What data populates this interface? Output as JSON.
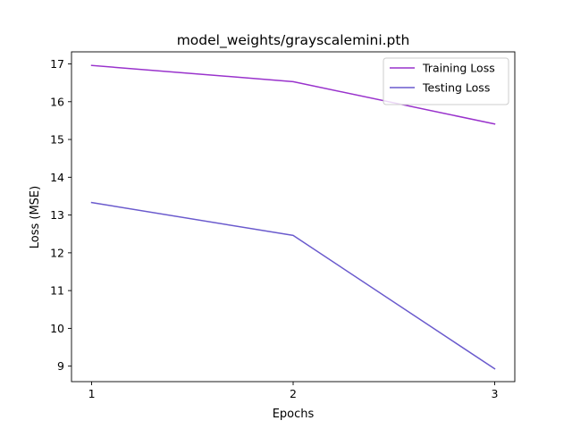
{
  "chart_data": {
    "type": "line",
    "title": "model_weights/grayscalemini.pth",
    "xlabel": "Epochs",
    "ylabel": "Loss (MSE)",
    "x": [
      1,
      2,
      3
    ],
    "x_ticks": [
      "1",
      "2",
      "3"
    ],
    "y_ticks": [
      "9",
      "10",
      "11",
      "12",
      "13",
      "14",
      "15",
      "16",
      "17"
    ],
    "xlim": [
      0.9,
      3.1
    ],
    "ylim": [
      8.59,
      17.32
    ],
    "grid": false,
    "legend_position": "top-right",
    "series": [
      {
        "name": "Training Loss",
        "color": "#9932CC",
        "values": [
          16.96,
          16.53,
          15.41
        ]
      },
      {
        "name": "Testing Loss",
        "color": "#6A5ACD",
        "values": [
          13.33,
          12.46,
          8.93
        ]
      }
    ]
  }
}
